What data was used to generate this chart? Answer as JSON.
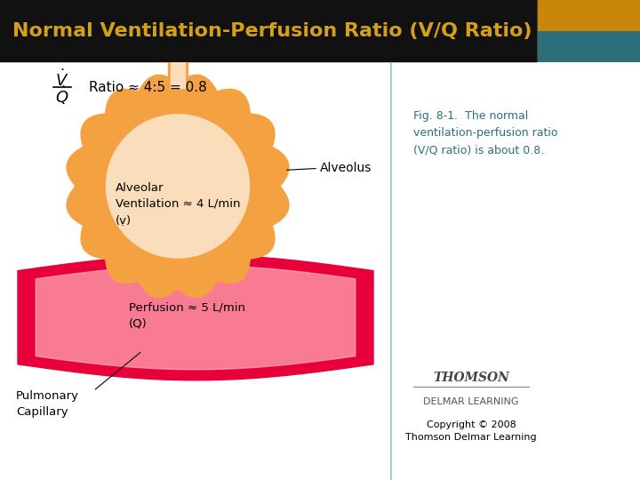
{
  "title": "Normal Ventilation-Perfusion Ratio (V/Q Ratio)",
  "title_color": "#D4A017",
  "title_bg": "#111111",
  "header_rect_color1": "#C8860A",
  "header_rect_color2": "#2E6E7A",
  "fig_caption": "Fig. 8-1.  The normal\nventilation-perfusion ratio\n(V/Q ratio) is about 0.8.",
  "caption_color": "#2E6E7A",
  "copyright_text": "Copyright © 2008\nThomson Delmar Learning",
  "ratio_text": "Ratio ≈ 4:5 = 0.8",
  "alveolus_label": "Alveolus",
  "alveolar_text": "Alveolar\nVentilation ≈ 4 L/min\n(ṿ)",
  "perfusion_text": "Perfusion ≈ 5 L/min\n(Q̇)",
  "pulmonary_text": "Pulmonary\nCapillary",
  "vq_numerator": "ṿ",
  "vq_denominator": "Q̇",
  "alveolus_outer_color": "#F4A142",
  "alveolus_inner_color": "#FADDBB",
  "capillary_outer_color": "#E8003A",
  "capillary_inner_color": "#FFB0B8",
  "bg_color": "#FFFFFF"
}
